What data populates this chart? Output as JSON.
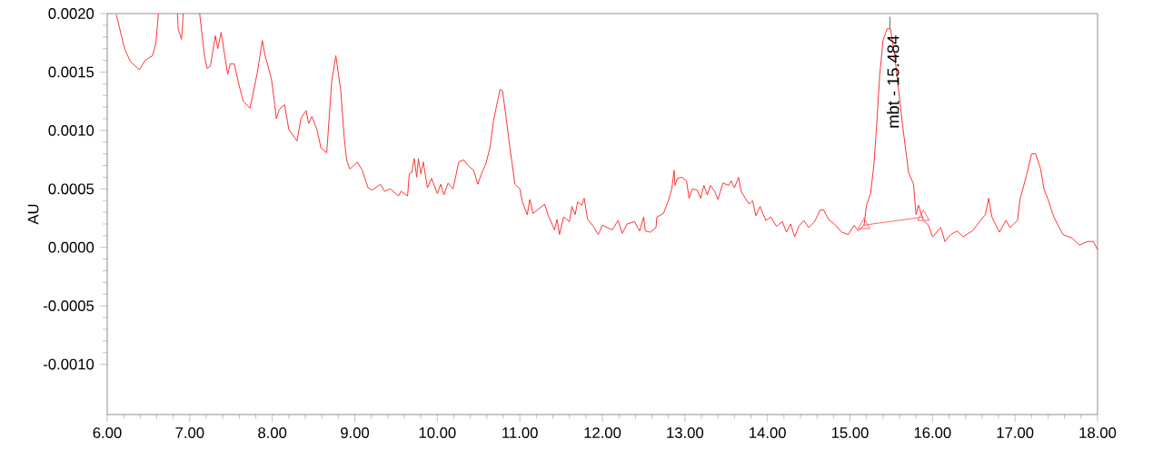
{
  "chart_data": {
    "type": "line",
    "ylabel": "AU",
    "xlim": [
      6,
      18
    ],
    "ylim": [
      -0.00143,
      0.002
    ],
    "xticks": [
      {
        "value": 6,
        "label": "6.00"
      },
      {
        "value": 7,
        "label": "7.00"
      },
      {
        "value": 8,
        "label": "8.00"
      },
      {
        "value": 9,
        "label": "9.00"
      },
      {
        "value": 10,
        "label": "10.00"
      },
      {
        "value": 11,
        "label": "11.00"
      },
      {
        "value": 12,
        "label": "12.00"
      },
      {
        "value": 13,
        "label": "13.00"
      },
      {
        "value": 14,
        "label": "14.00"
      },
      {
        "value": 15,
        "label": "15.00"
      },
      {
        "value": 16,
        "label": "16.00"
      },
      {
        "value": 17,
        "label": "17.00"
      },
      {
        "value": 18,
        "label": "18.00"
      }
    ],
    "yticks": [
      {
        "value": -0.001,
        "label": "-0.0010"
      },
      {
        "value": -0.0005,
        "label": "-0.0005"
      },
      {
        "value": 0,
        "label": "0.0000"
      },
      {
        "value": 0.0005,
        "label": "0.0005"
      },
      {
        "value": 0.001,
        "label": "0.0010"
      },
      {
        "value": 0.0015,
        "label": "0.0015"
      },
      {
        "value": 0.002,
        "label": "0.0020"
      }
    ],
    "annotations": [
      {
        "text": "mbt - 15.484",
        "x": 15.484,
        "y": 0.00187
      }
    ],
    "series": [
      {
        "color": "#ff3333",
        "x": [
          6.11,
          6.21,
          6.28,
          6.39,
          6.46,
          6.55,
          6.59,
          6.62,
          6.75,
          6.85,
          6.86,
          6.9,
          6.91,
          6.92,
          7.02,
          7.12,
          7.18,
          7.21,
          7.25,
          7.31,
          7.34,
          7.38,
          7.42,
          7.46,
          7.49,
          7.54,
          7.6,
          7.65,
          7.73,
          7.76,
          7.82,
          7.88,
          7.91,
          7.99,
          8.03,
          8.05,
          8.08,
          8.11,
          8.15,
          8.2,
          8.3,
          8.35,
          8.41,
          8.44,
          8.48,
          8.54,
          8.59,
          8.66,
          8.72,
          8.77,
          8.83,
          8.87,
          8.9,
          8.94,
          9.03,
          9.09,
          9.16,
          9.21,
          9.31,
          9.36,
          9.43,
          9.53,
          9.56,
          9.64,
          9.66,
          9.69,
          9.72,
          9.75,
          9.77,
          9.8,
          9.83,
          9.88,
          9.93,
          10.0,
          10.04,
          10.08,
          10.13,
          10.19,
          10.26,
          10.32,
          10.37,
          10.44,
          10.49,
          10.54,
          10.59,
          10.64,
          10.68,
          10.72,
          10.76,
          10.79,
          10.83,
          10.87,
          10.9,
          10.94,
          11.0,
          11.03,
          11.09,
          11.12,
          11.16,
          11.23,
          11.3,
          11.34,
          11.42,
          11.45,
          11.48,
          11.53,
          11.6,
          11.63,
          11.67,
          11.7,
          11.75,
          11.78,
          11.82,
          11.89,
          11.95,
          12.0,
          12.12,
          12.19,
          12.24,
          12.3,
          12.39,
          12.45,
          12.5,
          12.52,
          12.58,
          12.65,
          12.66,
          12.74,
          12.8,
          12.84,
          12.87,
          12.88,
          12.91,
          12.96,
          13.02,
          13.05,
          13.09,
          13.15,
          13.19,
          13.23,
          13.27,
          13.31,
          13.36,
          13.4,
          13.46,
          13.53,
          13.56,
          13.6,
          13.65,
          13.68,
          13.75,
          13.78,
          13.82,
          13.86,
          13.91,
          13.98,
          14.04,
          14.11,
          14.18,
          14.23,
          14.28,
          14.33,
          14.38,
          14.44,
          14.5,
          14.57,
          14.64,
          14.68,
          14.74,
          14.81,
          14.9,
          14.98,
          15.05,
          15.1,
          15.17,
          15.2,
          15.25,
          15.29,
          15.32,
          15.36,
          15.4,
          15.45,
          15.49,
          15.54,
          15.64,
          15.71,
          15.77,
          15.8,
          15.83,
          15.89,
          15.95,
          16.0,
          16.1,
          16.15,
          16.22,
          16.3,
          16.37,
          16.48,
          16.55,
          16.64,
          16.68,
          16.72,
          16.81,
          16.89,
          16.94,
          17.03,
          17.06,
          17.14,
          17.2,
          17.25,
          17.31,
          17.35,
          17.4,
          17.47,
          17.58,
          17.69,
          17.78,
          17.88,
          17.95,
          18.0
        ],
        "values": [
          0.00199,
          0.0017,
          0.00159,
          0.00152,
          0.0016,
          0.00164,
          0.00175,
          0.002,
          null,
          0.002,
          0.00187,
          0.00178,
          0.00186,
          0.002,
          null,
          0.002,
          0.00163,
          0.00153,
          0.00155,
          0.00181,
          0.0017,
          0.00184,
          0.00166,
          0.00148,
          0.00157,
          0.00157,
          0.00138,
          0.00125,
          0.00119,
          0.00129,
          0.0015,
          0.00177,
          0.00165,
          0.00144,
          0.00122,
          0.0011,
          0.00117,
          0.0012,
          0.00122,
          0.00101,
          0.00091,
          0.00111,
          0.00117,
          0.00106,
          0.00112,
          0.00101,
          0.00085,
          0.00081,
          0.00142,
          0.00164,
          0.00134,
          0.00095,
          0.00075,
          0.00067,
          0.00073,
          0.00066,
          0.00051,
          0.00049,
          0.00054,
          0.00048,
          0.0005,
          0.00044,
          0.00048,
          0.00044,
          0.00063,
          0.00064,
          0.00076,
          0.0006,
          0.00076,
          0.00063,
          0.00073,
          0.00051,
          0.00059,
          0.00046,
          0.00054,
          0.00045,
          0.00055,
          0.0005,
          0.00073,
          0.00075,
          0.0007,
          0.00066,
          0.00054,
          0.00064,
          0.00072,
          0.00086,
          0.00108,
          0.00122,
          0.00135,
          0.00134,
          0.00113,
          0.0009,
          0.00075,
          0.00054,
          0.0005,
          0.00039,
          0.00028,
          0.00041,
          0.00029,
          0.00033,
          0.00037,
          0.00028,
          0.00015,
          0.00024,
          0.00011,
          0.00026,
          0.00022,
          0.00035,
          0.00028,
          0.00039,
          0.00036,
          0.00042,
          0.00024,
          0.00018,
          0.00011,
          0.00019,
          0.00015,
          0.00023,
          0.00012,
          0.0002,
          0.00022,
          0.00014,
          0.00026,
          0.00014,
          0.00013,
          0.00017,
          0.00026,
          0.00029,
          0.0004,
          0.0005,
          0.00066,
          0.00053,
          0.00059,
          0.0006,
          0.00057,
          0.00042,
          0.0005,
          0.00049,
          0.00042,
          0.00053,
          0.00045,
          0.00053,
          0.00048,
          0.00041,
          0.00055,
          0.00053,
          0.00057,
          0.00051,
          0.0006,
          0.00048,
          0.0004,
          0.00037,
          0.0004,
          0.00027,
          0.00035,
          0.00023,
          0.00026,
          0.00018,
          0.00022,
          0.00013,
          0.0002,
          9e-05,
          0.00018,
          0.00023,
          0.00017,
          0.00022,
          0.00032,
          0.00032,
          0.00024,
          0.0002,
          0.00013,
          0.00011,
          0.00019,
          0.00014,
          0.00019,
          0.00036,
          0.00046,
          0.00071,
          0.00101,
          0.00147,
          0.00177,
          0.00187,
          0.00187,
          0.00165,
          0.00103,
          0.00064,
          0.00054,
          0.00028,
          0.00036,
          0.00023,
          0.00019,
          9e-05,
          0.00017,
          5e-05,
          0.00011,
          0.00014,
          9e-05,
          0.00014,
          0.0002,
          0.00028,
          0.00042,
          0.00026,
          0.00013,
          0.00023,
          0.00017,
          0.00023,
          0.00041,
          0.00062,
          0.0008,
          0.0008,
          0.00067,
          0.0005,
          0.00041,
          0.00026,
          0.00011,
          8e-05,
          2e-05,
          5e-05,
          5e-05,
          -2e-05
        ]
      },
      {
        "color": "#ff6666",
        "marker": "triangle",
        "x": [
          15.17,
          15.89
        ],
        "values": [
          0.00019,
          0.00026
        ]
      }
    ]
  }
}
